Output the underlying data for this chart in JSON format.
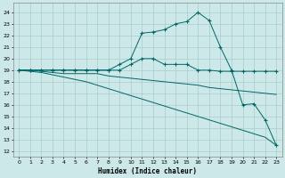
{
  "bg_color": "#cce8e8",
  "grid_color": "#aacccc",
  "line_color": "#006666",
  "xlabel": "Humidex (Indice chaleur)",
  "xlim": [
    -0.5,
    23.5
  ],
  "ylim": [
    11.5,
    24.8
  ],
  "yticks": [
    12,
    13,
    14,
    15,
    16,
    17,
    18,
    19,
    20,
    21,
    22,
    23,
    24
  ],
  "xticks": [
    0,
    1,
    2,
    3,
    4,
    5,
    6,
    7,
    8,
    9,
    10,
    11,
    12,
    13,
    14,
    15,
    16,
    17,
    18,
    19,
    20,
    21,
    22,
    23
  ],
  "line1_x": [
    0,
    1,
    2,
    3,
    4,
    5,
    6,
    7,
    8,
    9,
    10,
    11,
    12,
    13,
    14,
    15,
    16,
    17,
    18,
    19,
    20,
    21,
    22,
    23
  ],
  "line1_y": [
    19,
    19,
    19,
    19,
    19,
    19,
    19,
    19,
    19,
    19.5,
    20.0,
    22.2,
    22.3,
    22.5,
    23.0,
    23.2,
    24.0,
    23.3,
    21.0,
    19.0,
    16.0,
    16.1,
    14.7,
    12.5
  ],
  "line2_x": [
    0,
    1,
    2,
    3,
    4,
    5,
    6,
    7,
    8,
    9,
    10,
    11,
    12,
    13,
    14,
    15,
    16,
    17,
    18,
    19,
    20,
    21,
    22,
    23
  ],
  "line2_y": [
    19,
    19,
    19,
    19,
    19,
    19,
    19,
    19,
    19,
    19,
    19.5,
    20.0,
    20.0,
    19.5,
    19.5,
    19.5,
    19.0,
    19.0,
    18.9,
    18.9,
    18.9,
    18.9,
    18.9,
    18.9
  ],
  "line3_x": [
    0,
    1,
    2,
    3,
    4,
    5,
    6,
    7,
    8,
    9,
    10,
    11,
    12,
    13,
    14,
    15,
    16,
    17,
    18,
    19,
    20,
    21,
    22,
    23
  ],
  "line3_y": [
    19,
    19,
    18.9,
    18.8,
    18.7,
    18.7,
    18.7,
    18.7,
    18.5,
    18.4,
    18.3,
    18.2,
    18.1,
    18.0,
    17.9,
    17.8,
    17.7,
    17.5,
    17.4,
    17.3,
    17.2,
    17.1,
    17.0,
    16.9
  ],
  "line4_x": [
    0,
    1,
    2,
    3,
    4,
    5,
    6,
    7,
    8,
    9,
    10,
    11,
    12,
    13,
    14,
    15,
    16,
    17,
    18,
    19,
    20,
    21,
    22,
    23
  ],
  "line4_y": [
    19,
    18.9,
    18.8,
    18.6,
    18.4,
    18.2,
    18.0,
    17.7,
    17.4,
    17.1,
    16.8,
    16.5,
    16.2,
    15.9,
    15.6,
    15.3,
    15.0,
    14.7,
    14.4,
    14.1,
    13.8,
    13.5,
    13.2,
    12.5
  ]
}
